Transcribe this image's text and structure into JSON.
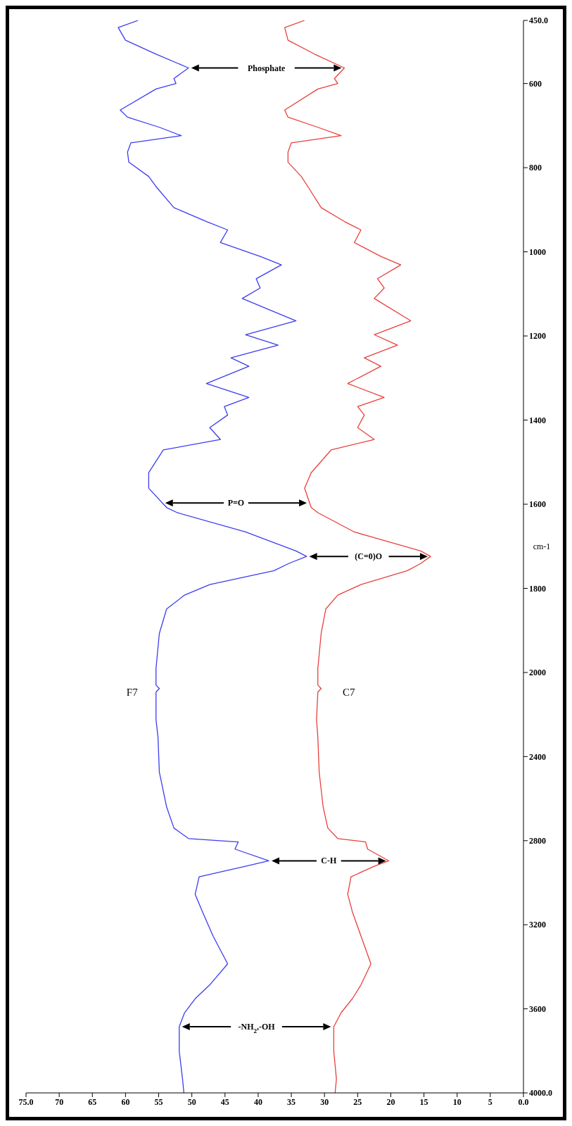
{
  "chart_data": [
    {
      "type": "line",
      "ylabel": "cm-1",
      "tick_labels": "y",
      "series": [
        {
          "color": "#3c3cf0",
          "x": [
            55.4,
            55.4,
            54.9,
            53.8,
            51.1,
            47.3,
            37.6,
            35.4,
            32.7,
            34.3,
            41.9,
            52.2,
            53.8,
            56.5,
            56.5,
            54.3,
            45.7,
            47.3,
            44.6,
            45.1,
            41.4,
            47.8,
            41.4,
            44.1,
            37.0,
            41.9,
            34.3,
            42.4,
            39.7,
            40.3,
            36.5,
            39.7,
            45.7,
            44.6,
            47.8,
            52.7,
            55.4,
            56.5,
            59.5,
            59.7,
            59.2,
            51.6,
            54.9,
            59.7,
            60.8,
            55.4,
            52.4,
            52.7,
            50.5,
            55.4,
            60.0,
            61.1,
            58.1
          ],
          "values": [
            2000,
            1990,
            1907,
            1849,
            1816,
            1791,
            1758,
            1741,
            1724,
            1711,
            1666,
            1620,
            1608,
            1562,
            1525,
            1471,
            1446,
            1418,
            1388,
            1368,
            1346,
            1313,
            1272,
            1252,
            1222,
            1197,
            1164,
            1111,
            1086,
            1064,
            1031,
            1011,
            978,
            948,
            928,
            895,
            845,
            821,
            787,
            763,
            741,
            724,
            704,
            680,
            663,
            613,
            600,
            588,
            563,
            530,
            497,
            467,
            450
          ]
        },
        {
          "color": "#e8403c",
          "x": [
            31.0,
            31.0,
            30.5,
            29.8,
            28.0,
            24.5,
            17.5,
            15.5,
            14.0,
            15.5,
            25.5,
            31.0,
            32.0,
            33.0,
            32.0,
            29.0,
            22.5,
            25.0,
            24.0,
            25.0,
            21.0,
            26.5,
            21.5,
            24.0,
            19.0,
            22.5,
            17.0,
            22.5,
            21.0,
            22.0,
            18.5,
            21.5,
            25.5,
            24.5,
            27.0,
            30.5,
            32.5,
            33.5,
            35.5,
            35.5,
            35.0,
            27.5,
            31.0,
            35.5,
            36.0,
            31.0,
            28.0,
            28.5,
            27.0,
            31.5,
            35.5,
            36.0,
            33.0
          ],
          "values": [
            2000,
            1990,
            1907,
            1849,
            1816,
            1791,
            1758,
            1741,
            1724,
            1711,
            1666,
            1620,
            1608,
            1562,
            1525,
            1471,
            1446,
            1418,
            1388,
            1368,
            1346,
            1313,
            1272,
            1252,
            1222,
            1197,
            1164,
            1111,
            1086,
            1064,
            1031,
            1011,
            978,
            948,
            928,
            895,
            845,
            821,
            787,
            763,
            741,
            724,
            704,
            680,
            663,
            613,
            600,
            588,
            563,
            530,
            497,
            467,
            450
          ]
        }
      ],
      "xlim": [
        75,
        0
      ],
      "ylim": [
        2000,
        450
      ],
      "yticks": [
        1800,
        1600,
        1400,
        1200,
        1000,
        800,
        600,
        {
          "value": 450,
          "label": "450.0"
        }
      ],
      "grid": false,
      "legend": false,
      "marker": "none",
      "line_style": "solid",
      "annotations": [
        "Phosphate",
        "P=O",
        "(C=0)O"
      ]
    },
    {
      "type": "line",
      "series": [
        {
          "name": "F7",
          "color": "#3c3cf0",
          "x": [
            51.2,
            51.4,
            51.9,
            51.9,
            51.1,
            49.5,
            47.3,
            44.6,
            46.8,
            48.4,
            49.5,
            48.9,
            41.9,
            38.4,
            43.5,
            43.0,
            50.5,
            52.7,
            53.8,
            54.9,
            55.1,
            55.4,
            55.4,
            54.9,
            55.4,
            55.4
          ],
          "values": [
            4000,
            3934,
            3801,
            3685,
            3619,
            3552,
            3486,
            3386,
            3254,
            3138,
            3055,
            2972,
            2922,
            2896,
            2840,
            2806,
            2790,
            2740,
            2640,
            2474,
            2308,
            2225,
            2093,
            2076,
            2060,
            2000
          ]
        },
        {
          "name": "C7",
          "color": "#e8403c",
          "x": [
            28.4,
            28.2,
            28.6,
            28.6,
            27.5,
            25.8,
            24.5,
            23.0,
            24.5,
            25.8,
            26.5,
            26.0,
            22.5,
            20.3,
            23.5,
            23.8,
            28.0,
            29.5,
            30.2,
            30.8,
            31.0,
            31.2,
            31.0,
            30.5,
            31.0,
            31.0
          ],
          "values": [
            4000,
            3934,
            3801,
            3685,
            3619,
            3552,
            3486,
            3386,
            3254,
            3138,
            3055,
            2972,
            2922,
            2896,
            2840,
            2806,
            2790,
            2740,
            2640,
            2474,
            2308,
            2225,
            2093,
            2076,
            2060,
            2000
          ]
        }
      ],
      "xlim": [
        75,
        0
      ],
      "xticks": [
        {
          "value": 75,
          "label": "75.0"
        },
        70,
        65,
        60,
        55,
        50,
        45,
        40,
        35,
        30,
        25,
        20,
        15,
        10,
        5,
        {
          "value": 0,
          "label": "0.0"
        }
      ],
      "ylim": [
        4000,
        2000
      ],
      "yticks": [
        {
          "value": 4000,
          "label": "4000.0"
        },
        3600,
        3200,
        2800,
        2400,
        2000
      ],
      "grid": false,
      "legend": false,
      "marker": "none",
      "line_style": "solid",
      "annotations": [
        "C-H",
        "-NH$_{2}$,-OH"
      ]
    }
  ]
}
